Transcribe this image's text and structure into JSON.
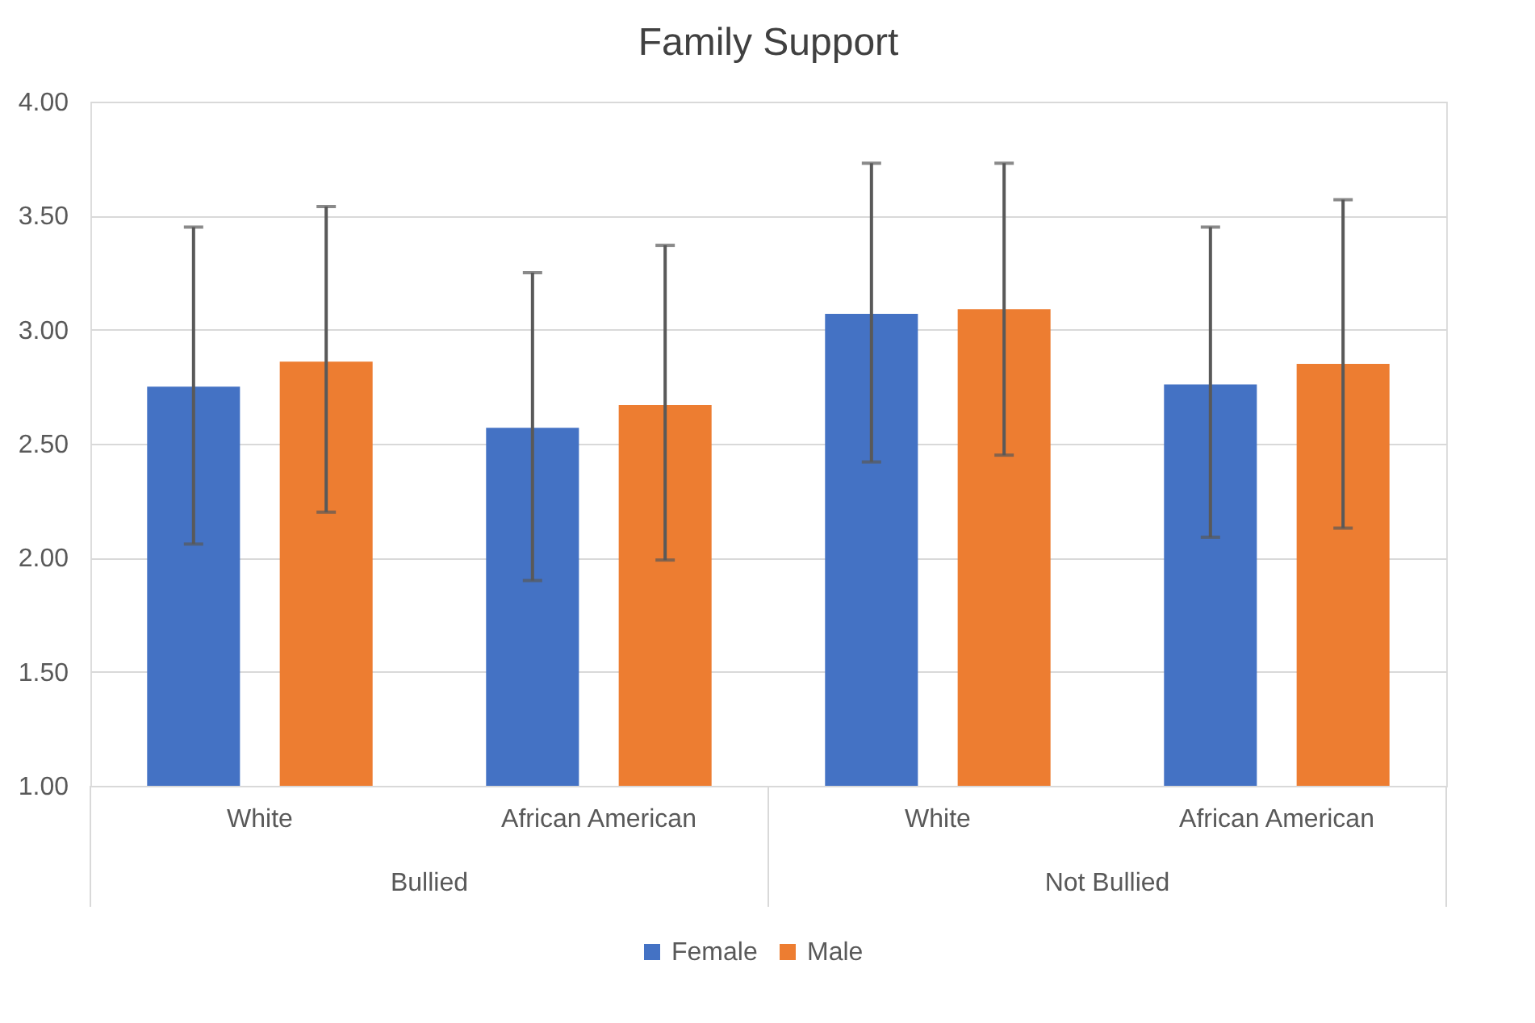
{
  "chart_data": {
    "type": "bar",
    "title": "Family Support",
    "categories": [
      "White",
      "African American",
      "White",
      "African American"
    ],
    "series": [
      {
        "name": "Female",
        "color": "#4472c4",
        "values": [
          2.75,
          2.57,
          3.07,
          2.76
        ],
        "errors": [
          [
            2.06,
            3.45
          ],
          [
            1.9,
            3.25
          ],
          [
            2.42,
            3.73
          ],
          [
            2.09,
            3.45
          ]
        ]
      },
      {
        "name": "Male",
        "color": "#ed7d31",
        "values": [
          2.86,
          2.67,
          3.09,
          2.85
        ],
        "errors": [
          [
            2.2,
            3.54
          ],
          [
            1.99,
            3.37
          ],
          [
            2.45,
            3.73
          ],
          [
            2.13,
            3.57
          ]
        ]
      }
    ],
    "ylim": [
      1,
      4
    ],
    "yticks": [
      {
        "value": 1,
        "label": "1.00"
      },
      {
        "value": 1.5,
        "label": "1.50"
      },
      {
        "value": 2,
        "label": "2.00"
      },
      {
        "value": 2.5,
        "label": "2.50"
      },
      {
        "value": 3,
        "label": "3.00"
      },
      {
        "value": 3.5,
        "label": "3.50"
      },
      {
        "value": 4,
        "label": "4.00"
      }
    ],
    "grid": "y",
    "legend": "bottom",
    "annotations": [
      "Bullied",
      "Not Bullied"
    ]
  }
}
